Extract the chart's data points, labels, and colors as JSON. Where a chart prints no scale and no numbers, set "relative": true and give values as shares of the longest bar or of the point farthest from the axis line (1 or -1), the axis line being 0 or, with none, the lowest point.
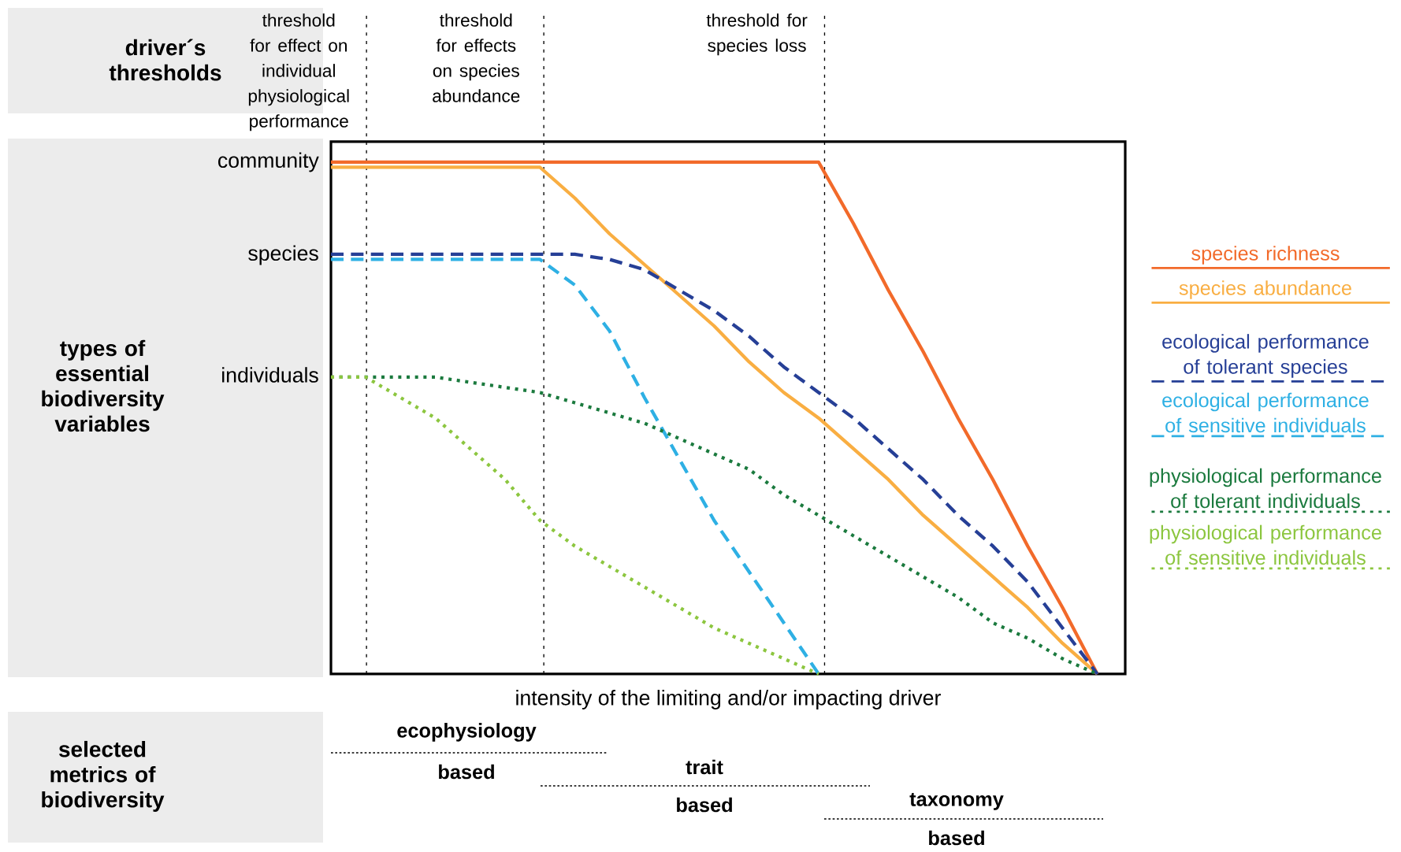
{
  "chart_data": {
    "type": "line",
    "xlabel": "intensity of the limiting and/or impacting driver",
    "categories": [
      null,
      null,
      null,
      null,
      null,
      null,
      null,
      null,
      null,
      null,
      null,
      null,
      null,
      null,
      null,
      null,
      null,
      null,
      null,
      null,
      null,
      null,
      null
    ],
    "relative": true,
    "tick_labels": false,
    "series": [
      {
        "name": "species richness",
        "color": "#f26a2a",
        "line_style": "solid",
        "values": [
          1,
          1,
          1,
          1,
          1,
          1,
          1,
          1,
          1,
          1,
          1,
          1,
          1,
          1,
          1,
          0.88,
          0.75,
          0.63,
          0.5,
          0.38,
          0.25,
          0.13,
          0
        ]
      },
      {
        "name": "species abundance",
        "color": "#f9ae42",
        "line_style": "solid",
        "values": [
          0.99,
          0.99,
          0.99,
          0.99,
          0.99,
          0.99,
          0.99,
          0.93,
          0.86,
          0.8,
          0.74,
          0.68,
          0.61,
          0.55,
          0.5,
          0.44,
          0.38,
          0.31,
          0.25,
          0.19,
          0.13,
          0.06,
          0
        ]
      },
      {
        "name": "ecological performance of tolerant species",
        "color": "#263f96",
        "line_style": "dashed",
        "values": [
          0.82,
          0.82,
          0.82,
          0.82,
          0.82,
          0.82,
          0.82,
          0.82,
          0.81,
          0.79,
          0.75,
          0.71,
          0.66,
          0.6,
          0.55,
          0.5,
          0.44,
          0.38,
          0.31,
          0.25,
          0.18,
          0.09,
          0
        ]
      },
      {
        "name": "ecological performance of sensitive individuals",
        "color": "#2eb0e4",
        "line_style": "dashed",
        "values": [
          0.81,
          0.81,
          0.81,
          0.81,
          0.81,
          0.81,
          0.81,
          0.76,
          0.67,
          0.54,
          0.42,
          0.3,
          0.2,
          0.1,
          0,
          null,
          null,
          null,
          null,
          null,
          null,
          null,
          null
        ]
      },
      {
        "name": "physiological performance of tolerant individuals",
        "color": "#1b7a3e",
        "line_style": "dotted",
        "values": [
          0.58,
          0.58,
          0.58,
          0.58,
          0.57,
          0.56,
          0.55,
          0.53,
          0.51,
          0.49,
          0.46,
          0.43,
          0.4,
          0.35,
          0.31,
          0.27,
          0.23,
          0.19,
          0.15,
          0.1,
          0.07,
          0.03,
          0
        ]
      },
      {
        "name": "physiological performance of sensitive individuals",
        "color": "#8cc63f",
        "line_style": "dotted",
        "values": [
          0.58,
          0.58,
          0.54,
          0.5,
          0.44,
          0.38,
          0.3,
          0.25,
          0.21,
          0.17,
          0.13,
          0.09,
          0.06,
          0.03,
          0,
          null,
          null,
          null,
          null,
          null,
          null,
          null,
          null
        ]
      }
    ],
    "annotations": [
      "driver´s thresholds",
      "types of essential biodiversity variables",
      "selected metrics of biodiversity",
      "ecophysiology",
      "based",
      "trait",
      "based",
      "taxonomy",
      "based",
      "threshold for effect on individual physiological performance",
      "threshold for effects on species abundance",
      "threshold for species loss",
      "community",
      "species",
      "individuals"
    ]
  }
}
